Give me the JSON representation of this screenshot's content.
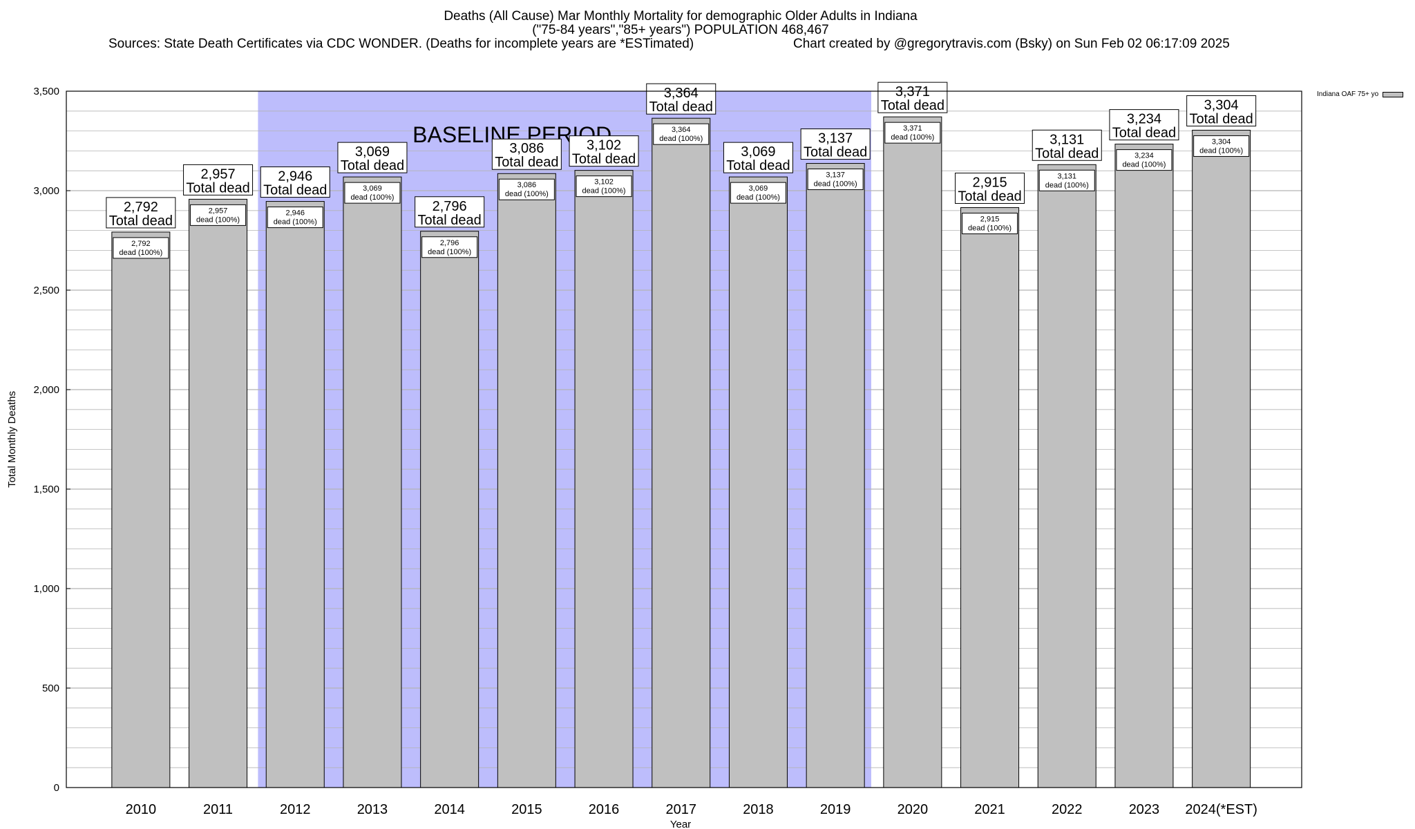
{
  "header": {
    "title_line1": "Deaths (All Cause) Mar Monthly Mortality for demographic Older Adults in Indiana",
    "title_line2": "(\"75-84 years\",\"85+ years\") POPULATION 468,467",
    "sources": "Sources: State Death Certificates via CDC WONDER. (Deaths for incomplete years are *ESTimated)",
    "credit": "Chart created by @gregorytravis.com (Bsky) on Sun Feb 02 06:17:09 2025"
  },
  "legend": {
    "label": "Indiana OAF 75+ yo"
  },
  "colors": {
    "bar": "#c0c0c0",
    "baseline": "#bdbdfc",
    "grid": "#b4b4b4"
  },
  "chart_data": {
    "type": "bar",
    "xlabel": "Year",
    "ylabel": "Total Monthly Deaths",
    "ylim": [
      0,
      3500
    ],
    "yticks": [
      0,
      500,
      1000,
      1500,
      2000,
      2500,
      3000,
      3500
    ],
    "ytick_labels": [
      "0",
      "500",
      "1,000",
      "1,500",
      "2,000",
      "2,500",
      "3,000",
      "3,500"
    ],
    "grid": true,
    "legend_position": "top-right",
    "categories": [
      "2010",
      "2011",
      "2012",
      "2013",
      "2014",
      "2015",
      "2016",
      "2017",
      "2018",
      "2019",
      "2020",
      "2021",
      "2022",
      "2023",
      "2024(*EST)"
    ],
    "series": [
      {
        "name": "Indiana OAF 75+ yo",
        "values": [
          2792,
          2957,
          2946,
          3069,
          2796,
          3086,
          3102,
          3364,
          3069,
          3137,
          3371,
          2915,
          3131,
          3234,
          3304
        ]
      }
    ],
    "value_labels": [
      "2,792",
      "2,957",
      "2,946",
      "3,069",
      "2,796",
      "3,086",
      "3,102",
      "3,364",
      "3,069",
      "3,137",
      "3,371",
      "2,915",
      "3,131",
      "3,234",
      "3,304"
    ],
    "total_caption": "Total dead",
    "inner_caption": "dead (100%)",
    "baseline_period": {
      "label": "BASELINE PERIOD",
      "start": "2012",
      "end": "2019"
    }
  }
}
